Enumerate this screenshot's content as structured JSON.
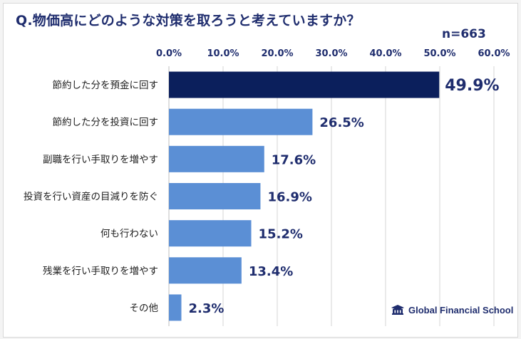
{
  "title": "Q.物価高にどのような対策を取ろうと考えていますか？",
  "sample_size": "n=663",
  "logo_text": "Global Financial School",
  "colors": {
    "highlight": "#0b1f5c",
    "bar": "#5b8fd5",
    "text": "#1f2d6e",
    "grid": "#d4d4d4"
  },
  "chart_data": {
    "type": "bar",
    "orientation": "horizontal",
    "categories": [
      "節約した分を預金に回す",
      "節約した分を投資に回す",
      "副職を行い手取りを増やす",
      "投資を行い資産の目減りを防ぐ",
      "何も行わない",
      "残業を行い手取りを増やす",
      "その他"
    ],
    "values": [
      49.9,
      26.5,
      17.6,
      16.9,
      15.2,
      13.4,
      2.3
    ],
    "value_labels": [
      "49.9%",
      "26.5%",
      "17.6%",
      "16.9%",
      "15.2%",
      "13.4%",
      "2.3%"
    ],
    "xlim": [
      0,
      60
    ],
    "ticks": [
      "0.0%",
      "10.0%",
      "20.0%",
      "30.0%",
      "40.0%",
      "50.0%",
      "60.0%"
    ],
    "grid": true,
    "highlight_index": 0
  }
}
